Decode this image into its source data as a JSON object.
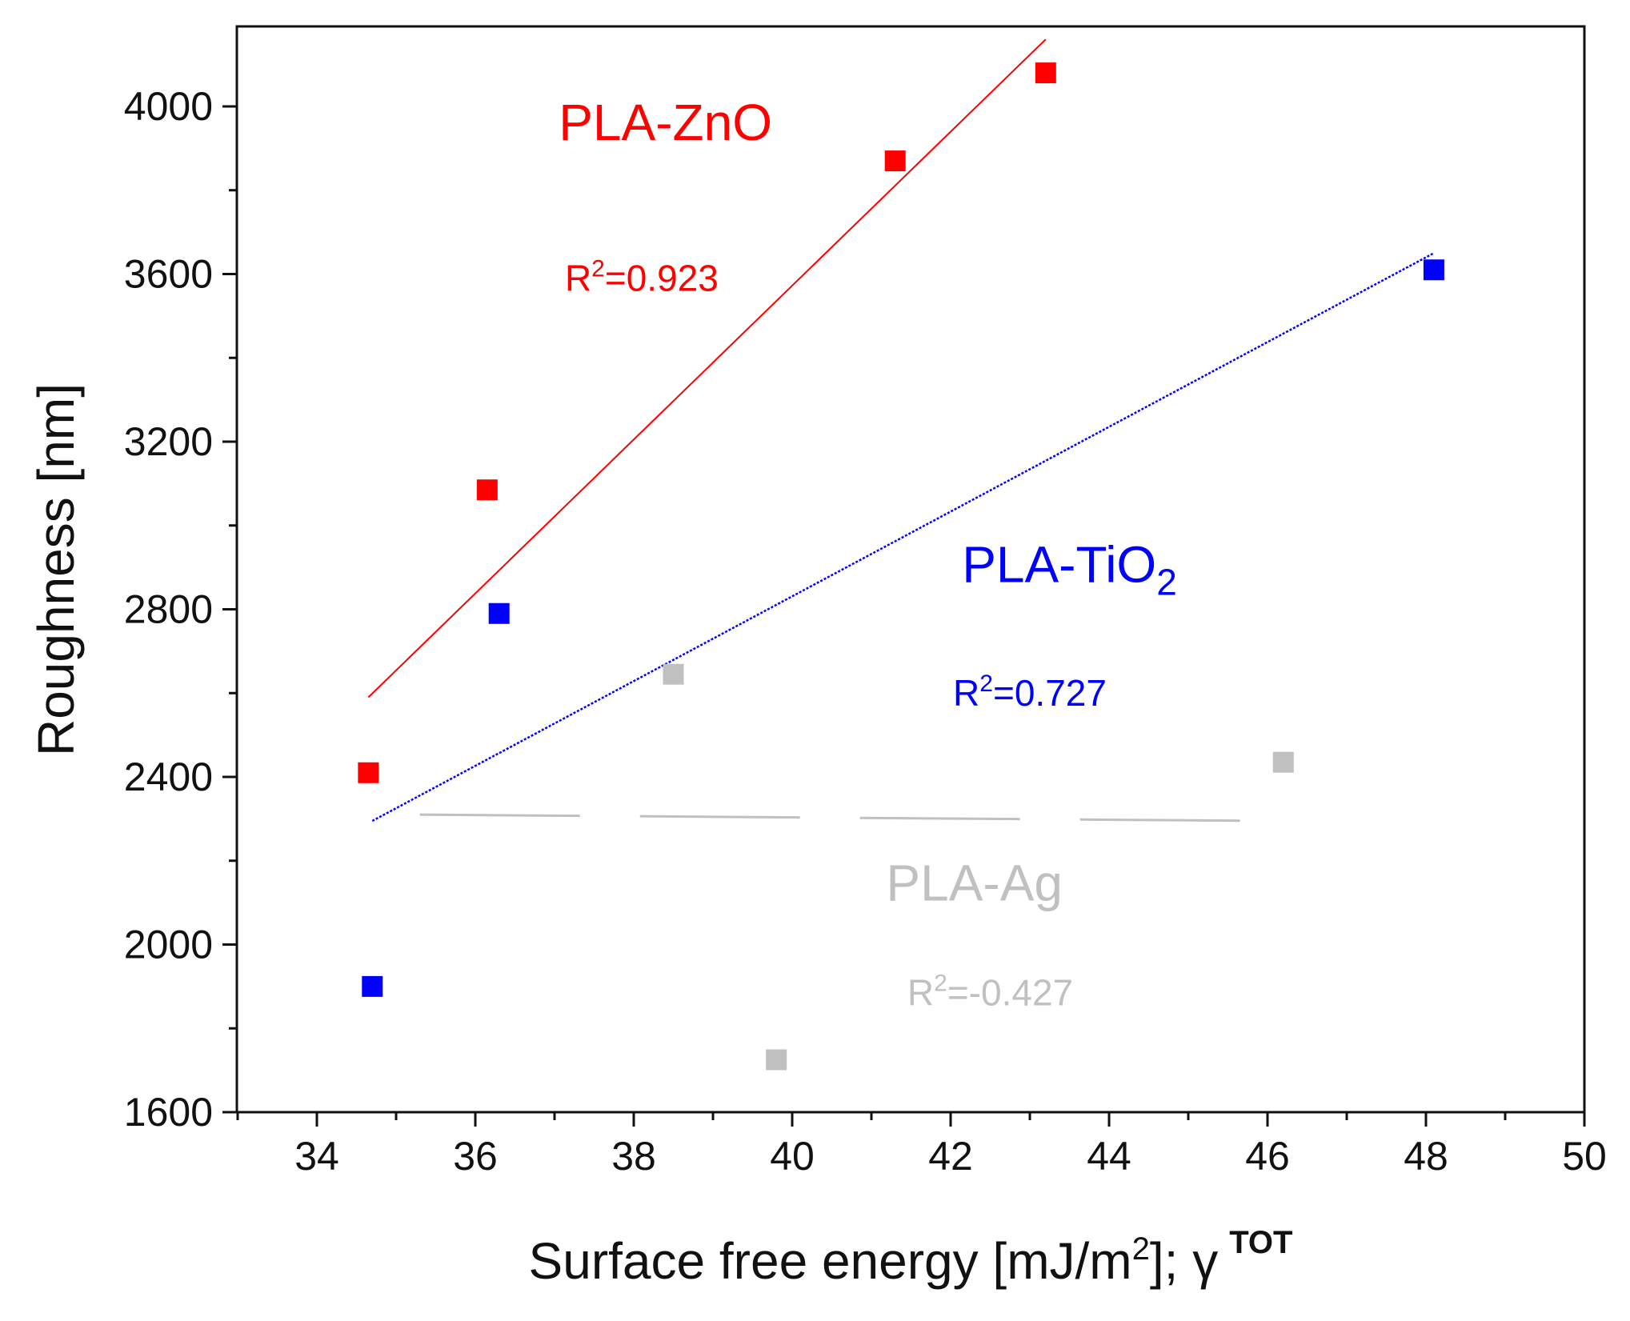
{
  "chart_data": {
    "type": "scatter",
    "title": "",
    "xlabel": "Surface free energy [mJ/m",
    "xlabel_sup": "2",
    "xlabel_suffix": "]; γ",
    "xlabel_gamma_sup": "TOT",
    "ylabel": "Roughness [nm]",
    "xlim": [
      33,
      50
    ],
    "ylim": [
      1600,
      4200
    ],
    "x_ticks": [
      34,
      36,
      38,
      40,
      42,
      44,
      46,
      48,
      50
    ],
    "y_ticks": [
      1600,
      2000,
      2400,
      2800,
      3200,
      3600,
      4000
    ],
    "series": [
      {
        "name": "PLA-ZnO",
        "color": "#ff0000",
        "points": [
          [
            34.65,
            2410
          ],
          [
            36.15,
            3085
          ],
          [
            41.3,
            3870
          ],
          [
            43.2,
            4080
          ]
        ],
        "fit": [
          [
            34.65,
            2590
          ],
          [
            43.2,
            4160
          ]
        ],
        "fit_style": "solid",
        "r2_prefix": "R",
        "r2_sup": "2",
        "r2_value": "=0.923",
        "label_pos": [
          38.4,
          3920
        ],
        "r2_pos": [
          38.1,
          3560
        ]
      },
      {
        "name_main": "PLA-TiO",
        "name_sub": "2",
        "color": "#0000ff",
        "points": [
          [
            34.7,
            1900
          ],
          [
            36.3,
            2790
          ],
          [
            48.1,
            3610
          ]
        ],
        "fit": [
          [
            34.7,
            2295
          ],
          [
            48.1,
            3650
          ]
        ],
        "fit_style": "dotted",
        "r2_prefix": "R",
        "r2_sup": "2",
        "r2_value": "=0.727",
        "label_pos": [
          43.5,
          2865
        ],
        "r2_pos": [
          43.0,
          2570
        ]
      },
      {
        "name": "PLA-Ag",
        "color": "#c0c0c0",
        "points": [
          [
            38.5,
            2645
          ],
          [
            39.8,
            1725
          ],
          [
            46.2,
            2435
          ]
        ],
        "fit": [
          [
            35.3,
            2310
          ],
          [
            46.0,
            2295
          ]
        ],
        "fit_style": "dashed",
        "r2_prefix": "R",
        "r2_sup": "2",
        "r2_value": "=-0.427",
        "label_pos": [
          42.3,
          2105
        ],
        "r2_pos": [
          42.5,
          1855
        ]
      }
    ]
  }
}
